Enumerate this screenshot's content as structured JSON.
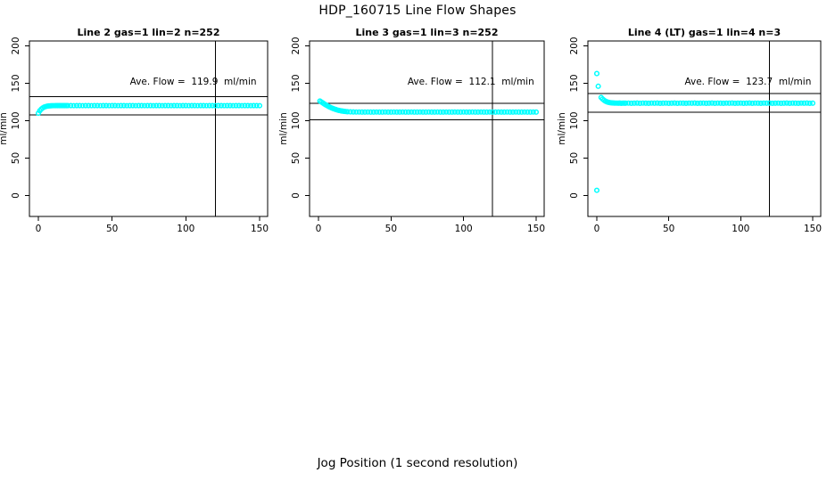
{
  "page_title": "HDP_160715  Line Flow Shapes",
  "x_axis_label": "Jog Position (1 second resolution)",
  "y_axis_label": "ml/min",
  "point_color": "#00FFFF",
  "axis_color": "#000000",
  "axes": {
    "xlim": [
      0,
      150
    ],
    "ylim": [
      0,
      200
    ],
    "x_ticks": [
      0,
      50,
      100,
      150
    ],
    "y_ticks": [
      0,
      50,
      100,
      150,
      200
    ],
    "grid": false,
    "vertical_marker_x": 120
  },
  "chart_data": [
    {
      "type": "scatter",
      "title": "Line 2 gas=1 lin=2 n=252",
      "ave_flow": 119.9,
      "annotation": "Ave. Flow =  119.9  ml/min",
      "ref_line_upper": 131.9,
      "ref_line_lower": 107.9,
      "vline_x": 120,
      "points": [
        [
          0,
          110.0
        ],
        [
          1,
          113.3
        ],
        [
          2,
          115.5
        ],
        [
          3,
          117.1
        ],
        [
          4,
          118.2
        ],
        [
          5,
          118.9
        ],
        [
          6,
          119.4
        ],
        [
          7,
          119.7
        ],
        [
          8,
          119.9
        ],
        [
          9,
          120.0
        ],
        [
          10,
          120.1
        ],
        [
          11,
          120.1
        ],
        [
          12,
          120.2
        ],
        [
          13,
          120.2
        ],
        [
          14,
          120.2
        ],
        [
          15,
          120.2
        ],
        [
          16,
          120.2
        ],
        [
          17,
          120.2
        ],
        [
          18,
          120.2
        ],
        [
          19,
          120.2
        ],
        [
          20,
          120.2
        ],
        [
          22,
          120.2
        ],
        [
          24,
          120.1
        ],
        [
          26,
          120.2
        ],
        [
          28,
          120.2
        ],
        [
          30,
          120.1
        ],
        [
          32,
          120.2
        ],
        [
          34,
          120.2
        ],
        [
          36,
          120.1
        ],
        [
          38,
          120.2
        ],
        [
          40,
          120.2
        ],
        [
          42,
          120.1
        ],
        [
          44,
          120.2
        ],
        [
          46,
          120.2
        ],
        [
          48,
          120.1
        ],
        [
          50,
          120.2
        ],
        [
          52,
          120.2
        ],
        [
          54,
          120.1
        ],
        [
          56,
          120.2
        ],
        [
          58,
          120.2
        ],
        [
          60,
          120.1
        ],
        [
          62,
          120.2
        ],
        [
          64,
          120.2
        ],
        [
          66,
          120.1
        ],
        [
          68,
          120.2
        ],
        [
          70,
          120.2
        ],
        [
          72,
          120.1
        ],
        [
          74,
          120.2
        ],
        [
          76,
          120.2
        ],
        [
          78,
          120.1
        ],
        [
          80,
          120.2
        ],
        [
          82,
          120.2
        ],
        [
          84,
          120.1
        ],
        [
          86,
          120.2
        ],
        [
          88,
          120.2
        ],
        [
          90,
          120.1
        ],
        [
          92,
          120.2
        ],
        [
          94,
          120.2
        ],
        [
          96,
          120.1
        ],
        [
          98,
          120.2
        ],
        [
          100,
          120.2
        ],
        [
          102,
          120.1
        ],
        [
          104,
          120.2
        ],
        [
          106,
          120.2
        ],
        [
          108,
          120.1
        ],
        [
          110,
          120.2
        ],
        [
          112,
          120.2
        ],
        [
          114,
          120.1
        ],
        [
          116,
          120.2
        ],
        [
          118,
          120.2
        ],
        [
          120,
          120.1
        ],
        [
          122,
          120.2
        ],
        [
          124,
          120.2
        ],
        [
          126,
          120.1
        ],
        [
          128,
          120.2
        ],
        [
          130,
          120.2
        ],
        [
          132,
          120.1
        ],
        [
          134,
          120.2
        ],
        [
          136,
          120.2
        ],
        [
          138,
          120.1
        ],
        [
          140,
          120.2
        ],
        [
          142,
          120.2
        ],
        [
          144,
          120.1
        ],
        [
          146,
          120.2
        ],
        [
          148,
          120.2
        ],
        [
          150,
          120.1
        ]
      ]
    },
    {
      "type": "scatter",
      "title": "Line 3 gas=1 lin=3 n=252",
      "ave_flow": 112.1,
      "annotation": "Ave. Flow =  112.1  ml/min",
      "ref_line_upper": 123.3,
      "ref_line_lower": 100.9,
      "vline_x": 120,
      "points": [
        [
          1,
          126.3
        ],
        [
          2,
          125.0
        ],
        [
          3,
          123.7
        ],
        [
          4,
          122.4
        ],
        [
          5,
          121.2
        ],
        [
          6,
          120.1
        ],
        [
          7,
          119.0
        ],
        [
          8,
          118.0
        ],
        [
          9,
          117.1
        ],
        [
          10,
          116.3
        ],
        [
          11,
          115.6
        ],
        [
          12,
          114.9
        ],
        [
          13,
          114.3
        ],
        [
          14,
          113.8
        ],
        [
          15,
          113.4
        ],
        [
          16,
          113.0
        ],
        [
          17,
          112.7
        ],
        [
          18,
          112.4
        ],
        [
          19,
          112.2
        ],
        [
          20,
          112.0
        ],
        [
          22,
          111.8
        ],
        [
          24,
          111.7
        ],
        [
          26,
          111.6
        ],
        [
          28,
          111.6
        ],
        [
          30,
          111.5
        ],
        [
          32,
          111.5
        ],
        [
          34,
          111.6
        ],
        [
          36,
          111.5
        ],
        [
          38,
          111.5
        ],
        [
          40,
          111.6
        ],
        [
          42,
          111.5
        ],
        [
          44,
          111.5
        ],
        [
          46,
          111.6
        ],
        [
          48,
          111.5
        ],
        [
          50,
          111.5
        ],
        [
          52,
          111.6
        ],
        [
          54,
          111.5
        ],
        [
          56,
          111.5
        ],
        [
          58,
          111.6
        ],
        [
          60,
          111.5
        ],
        [
          62,
          111.5
        ],
        [
          64,
          111.6
        ],
        [
          66,
          111.5
        ],
        [
          68,
          111.5
        ],
        [
          70,
          111.6
        ],
        [
          72,
          111.5
        ],
        [
          74,
          111.5
        ],
        [
          76,
          111.6
        ],
        [
          78,
          111.5
        ],
        [
          80,
          111.5
        ],
        [
          82,
          111.6
        ],
        [
          84,
          111.5
        ],
        [
          86,
          111.5
        ],
        [
          88,
          111.6
        ],
        [
          90,
          111.5
        ],
        [
          92,
          111.5
        ],
        [
          94,
          111.6
        ],
        [
          96,
          111.5
        ],
        [
          98,
          111.5
        ],
        [
          100,
          111.6
        ],
        [
          102,
          111.5
        ],
        [
          104,
          111.5
        ],
        [
          106,
          111.6
        ],
        [
          108,
          111.5
        ],
        [
          110,
          111.5
        ],
        [
          112,
          111.6
        ],
        [
          114,
          111.5
        ],
        [
          116,
          111.5
        ],
        [
          118,
          111.6
        ],
        [
          120,
          111.5
        ],
        [
          122,
          111.5
        ],
        [
          124,
          111.6
        ],
        [
          126,
          111.5
        ],
        [
          128,
          111.5
        ],
        [
          130,
          111.6
        ],
        [
          132,
          111.5
        ],
        [
          134,
          111.5
        ],
        [
          136,
          111.6
        ],
        [
          138,
          111.5
        ],
        [
          140,
          111.5
        ],
        [
          142,
          111.6
        ],
        [
          144,
          111.5
        ],
        [
          146,
          111.5
        ],
        [
          148,
          111.6
        ],
        [
          150,
          111.5
        ]
      ]
    },
    {
      "type": "scatter",
      "title": "Line 4 (LT) gas=1 lin=4 n=3",
      "ave_flow": 123.7,
      "annotation": "Ave. Flow =  123.7  ml/min",
      "ref_line_upper": 136.1,
      "ref_line_lower": 111.3,
      "vline_x": 120,
      "points": [
        [
          0,
          163.0
        ],
        [
          0,
          7.0
        ],
        [
          1,
          146.0
        ],
        [
          3,
          131.0
        ],
        [
          4,
          129.0
        ],
        [
          5,
          127.4
        ],
        [
          6,
          126.1
        ],
        [
          7,
          125.2
        ],
        [
          8,
          124.6
        ],
        [
          9,
          124.2
        ],
        [
          10,
          123.9
        ],
        [
          11,
          123.7
        ],
        [
          12,
          123.6
        ],
        [
          13,
          123.5
        ],
        [
          14,
          123.5
        ],
        [
          15,
          123.4
        ],
        [
          16,
          123.6
        ],
        [
          17,
          123.3
        ],
        [
          18,
          123.5
        ],
        [
          19,
          123.4
        ],
        [
          20,
          123.4
        ],
        [
          22,
          123.5
        ],
        [
          24,
          123.3
        ],
        [
          26,
          123.4
        ],
        [
          28,
          123.6
        ],
        [
          30,
          123.3
        ],
        [
          32,
          123.5
        ],
        [
          34,
          123.4
        ],
        [
          36,
          123.3
        ],
        [
          38,
          123.5
        ],
        [
          40,
          123.4
        ],
        [
          42,
          123.6
        ],
        [
          44,
          123.3
        ],
        [
          46,
          123.4
        ],
        [
          48,
          123.5
        ],
        [
          50,
          123.3
        ],
        [
          52,
          123.4
        ],
        [
          54,
          123.6
        ],
        [
          56,
          123.3
        ],
        [
          58,
          123.5
        ],
        [
          60,
          123.4
        ],
        [
          62,
          123.3
        ],
        [
          64,
          123.5
        ],
        [
          66,
          123.4
        ],
        [
          68,
          123.6
        ],
        [
          70,
          123.3
        ],
        [
          72,
          123.4
        ],
        [
          74,
          123.5
        ],
        [
          76,
          123.3
        ],
        [
          78,
          123.4
        ],
        [
          80,
          123.6
        ],
        [
          82,
          123.3
        ],
        [
          84,
          123.5
        ],
        [
          86,
          123.4
        ],
        [
          88,
          123.3
        ],
        [
          90,
          123.5
        ],
        [
          92,
          123.4
        ],
        [
          94,
          123.6
        ],
        [
          96,
          123.3
        ],
        [
          98,
          123.4
        ],
        [
          100,
          123.5
        ],
        [
          102,
          123.3
        ],
        [
          104,
          123.4
        ],
        [
          106,
          123.6
        ],
        [
          108,
          123.3
        ],
        [
          110,
          123.5
        ],
        [
          112,
          123.4
        ],
        [
          114,
          123.3
        ],
        [
          116,
          123.5
        ],
        [
          118,
          123.4
        ],
        [
          120,
          123.6
        ],
        [
          122,
          123.3
        ],
        [
          124,
          123.4
        ],
        [
          126,
          123.5
        ],
        [
          128,
          123.3
        ],
        [
          130,
          123.4
        ],
        [
          132,
          123.6
        ],
        [
          134,
          123.3
        ],
        [
          136,
          123.5
        ],
        [
          138,
          123.4
        ],
        [
          140,
          123.3
        ],
        [
          142,
          123.5
        ],
        [
          144,
          123.4
        ],
        [
          146,
          123.6
        ],
        [
          148,
          123.3
        ],
        [
          150,
          123.4
        ]
      ]
    }
  ]
}
